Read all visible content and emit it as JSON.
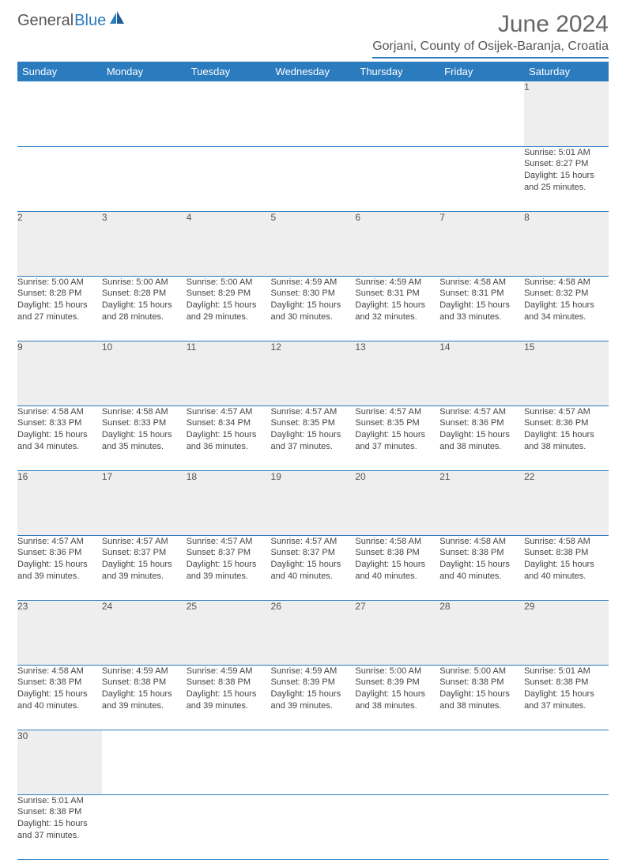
{
  "brand": {
    "general": "General",
    "blue": "Blue"
  },
  "title": "June 2024",
  "location": "Gorjani, County of Osijek-Baranja, Croatia",
  "colors": {
    "accent": "#2b7bbf",
    "header_text": "#ffffff",
    "daynum_bg": "#eeeeee",
    "body_text": "#444444",
    "title_text": "#666666"
  },
  "weekdays": [
    "Sunday",
    "Monday",
    "Tuesday",
    "Wednesday",
    "Thursday",
    "Friday",
    "Saturday"
  ],
  "weeks": [
    [
      null,
      null,
      null,
      null,
      null,
      null,
      {
        "n": "1",
        "sr": "Sunrise: 5:01 AM",
        "ss": "Sunset: 8:27 PM",
        "dl1": "Daylight: 15 hours",
        "dl2": "and 25 minutes."
      }
    ],
    [
      {
        "n": "2",
        "sr": "Sunrise: 5:00 AM",
        "ss": "Sunset: 8:28 PM",
        "dl1": "Daylight: 15 hours",
        "dl2": "and 27 minutes."
      },
      {
        "n": "3",
        "sr": "Sunrise: 5:00 AM",
        "ss": "Sunset: 8:28 PM",
        "dl1": "Daylight: 15 hours",
        "dl2": "and 28 minutes."
      },
      {
        "n": "4",
        "sr": "Sunrise: 5:00 AM",
        "ss": "Sunset: 8:29 PM",
        "dl1": "Daylight: 15 hours",
        "dl2": "and 29 minutes."
      },
      {
        "n": "5",
        "sr": "Sunrise: 4:59 AM",
        "ss": "Sunset: 8:30 PM",
        "dl1": "Daylight: 15 hours",
        "dl2": "and 30 minutes."
      },
      {
        "n": "6",
        "sr": "Sunrise: 4:59 AM",
        "ss": "Sunset: 8:31 PM",
        "dl1": "Daylight: 15 hours",
        "dl2": "and 32 minutes."
      },
      {
        "n": "7",
        "sr": "Sunrise: 4:58 AM",
        "ss": "Sunset: 8:31 PM",
        "dl1": "Daylight: 15 hours",
        "dl2": "and 33 minutes."
      },
      {
        "n": "8",
        "sr": "Sunrise: 4:58 AM",
        "ss": "Sunset: 8:32 PM",
        "dl1": "Daylight: 15 hours",
        "dl2": "and 34 minutes."
      }
    ],
    [
      {
        "n": "9",
        "sr": "Sunrise: 4:58 AM",
        "ss": "Sunset: 8:33 PM",
        "dl1": "Daylight: 15 hours",
        "dl2": "and 34 minutes."
      },
      {
        "n": "10",
        "sr": "Sunrise: 4:58 AM",
        "ss": "Sunset: 8:33 PM",
        "dl1": "Daylight: 15 hours",
        "dl2": "and 35 minutes."
      },
      {
        "n": "11",
        "sr": "Sunrise: 4:57 AM",
        "ss": "Sunset: 8:34 PM",
        "dl1": "Daylight: 15 hours",
        "dl2": "and 36 minutes."
      },
      {
        "n": "12",
        "sr": "Sunrise: 4:57 AM",
        "ss": "Sunset: 8:35 PM",
        "dl1": "Daylight: 15 hours",
        "dl2": "and 37 minutes."
      },
      {
        "n": "13",
        "sr": "Sunrise: 4:57 AM",
        "ss": "Sunset: 8:35 PM",
        "dl1": "Daylight: 15 hours",
        "dl2": "and 37 minutes."
      },
      {
        "n": "14",
        "sr": "Sunrise: 4:57 AM",
        "ss": "Sunset: 8:36 PM",
        "dl1": "Daylight: 15 hours",
        "dl2": "and 38 minutes."
      },
      {
        "n": "15",
        "sr": "Sunrise: 4:57 AM",
        "ss": "Sunset: 8:36 PM",
        "dl1": "Daylight: 15 hours",
        "dl2": "and 38 minutes."
      }
    ],
    [
      {
        "n": "16",
        "sr": "Sunrise: 4:57 AM",
        "ss": "Sunset: 8:36 PM",
        "dl1": "Daylight: 15 hours",
        "dl2": "and 39 minutes."
      },
      {
        "n": "17",
        "sr": "Sunrise: 4:57 AM",
        "ss": "Sunset: 8:37 PM",
        "dl1": "Daylight: 15 hours",
        "dl2": "and 39 minutes."
      },
      {
        "n": "18",
        "sr": "Sunrise: 4:57 AM",
        "ss": "Sunset: 8:37 PM",
        "dl1": "Daylight: 15 hours",
        "dl2": "and 39 minutes."
      },
      {
        "n": "19",
        "sr": "Sunrise: 4:57 AM",
        "ss": "Sunset: 8:37 PM",
        "dl1": "Daylight: 15 hours",
        "dl2": "and 40 minutes."
      },
      {
        "n": "20",
        "sr": "Sunrise: 4:58 AM",
        "ss": "Sunset: 8:38 PM",
        "dl1": "Daylight: 15 hours",
        "dl2": "and 40 minutes."
      },
      {
        "n": "21",
        "sr": "Sunrise: 4:58 AM",
        "ss": "Sunset: 8:38 PM",
        "dl1": "Daylight: 15 hours",
        "dl2": "and 40 minutes."
      },
      {
        "n": "22",
        "sr": "Sunrise: 4:58 AM",
        "ss": "Sunset: 8:38 PM",
        "dl1": "Daylight: 15 hours",
        "dl2": "and 40 minutes."
      }
    ],
    [
      {
        "n": "23",
        "sr": "Sunrise: 4:58 AM",
        "ss": "Sunset: 8:38 PM",
        "dl1": "Daylight: 15 hours",
        "dl2": "and 40 minutes."
      },
      {
        "n": "24",
        "sr": "Sunrise: 4:59 AM",
        "ss": "Sunset: 8:38 PM",
        "dl1": "Daylight: 15 hours",
        "dl2": "and 39 minutes."
      },
      {
        "n": "25",
        "sr": "Sunrise: 4:59 AM",
        "ss": "Sunset: 8:38 PM",
        "dl1": "Daylight: 15 hours",
        "dl2": "and 39 minutes."
      },
      {
        "n": "26",
        "sr": "Sunrise: 4:59 AM",
        "ss": "Sunset: 8:39 PM",
        "dl1": "Daylight: 15 hours",
        "dl2": "and 39 minutes."
      },
      {
        "n": "27",
        "sr": "Sunrise: 5:00 AM",
        "ss": "Sunset: 8:39 PM",
        "dl1": "Daylight: 15 hours",
        "dl2": "and 38 minutes."
      },
      {
        "n": "28",
        "sr": "Sunrise: 5:00 AM",
        "ss": "Sunset: 8:38 PM",
        "dl1": "Daylight: 15 hours",
        "dl2": "and 38 minutes."
      },
      {
        "n": "29",
        "sr": "Sunrise: 5:01 AM",
        "ss": "Sunset: 8:38 PM",
        "dl1": "Daylight: 15 hours",
        "dl2": "and 37 minutes."
      }
    ],
    [
      {
        "n": "30",
        "sr": "Sunrise: 5:01 AM",
        "ss": "Sunset: 8:38 PM",
        "dl1": "Daylight: 15 hours",
        "dl2": "and 37 minutes."
      },
      null,
      null,
      null,
      null,
      null,
      null
    ]
  ]
}
